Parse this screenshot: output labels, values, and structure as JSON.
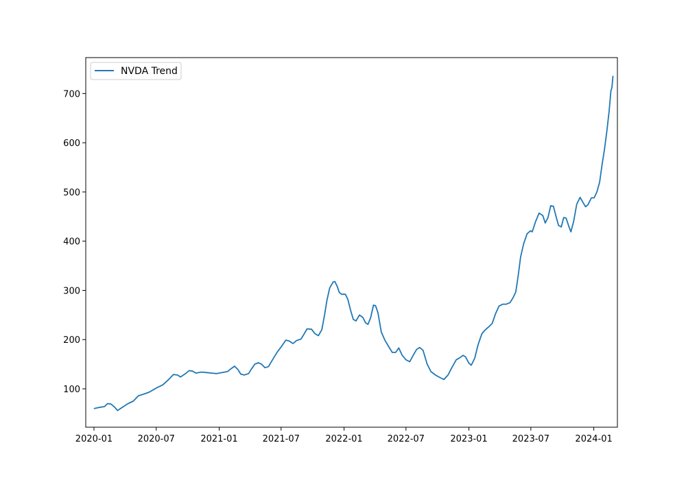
{
  "chart_data": {
    "type": "line",
    "title": "",
    "xlabel": "",
    "ylabel": "",
    "xlim": [
      "2019-12-08",
      "2024-03-10"
    ],
    "ylim": [
      22,
      773
    ],
    "grid": false,
    "legend": {
      "position": "top-left",
      "entries": [
        "NVDA Trend"
      ]
    },
    "x_ticks": [
      {
        "value": "2020-01-01",
        "label": "2020-01"
      },
      {
        "value": "2020-07-01",
        "label": "2020-07"
      },
      {
        "value": "2021-01-01",
        "label": "2021-01"
      },
      {
        "value": "2021-07-01",
        "label": "2021-07"
      },
      {
        "value": "2022-01-01",
        "label": "2022-01"
      },
      {
        "value": "2022-07-01",
        "label": "2022-07"
      },
      {
        "value": "2023-01-01",
        "label": "2023-01"
      },
      {
        "value": "2023-07-01",
        "label": "2023-07"
      },
      {
        "value": "2024-01-01",
        "label": "2024-01"
      }
    ],
    "y_ticks": [
      {
        "value": 100,
        "label": "100"
      },
      {
        "value": 200,
        "label": "200"
      },
      {
        "value": 300,
        "label": "300"
      },
      {
        "value": 400,
        "label": "400"
      },
      {
        "value": 500,
        "label": "500"
      },
      {
        "value": 600,
        "label": "600"
      },
      {
        "value": 700,
        "label": "700"
      }
    ],
    "series": [
      {
        "name": "NVDA Trend",
        "color": "#1f77b4",
        "points": [
          [
            "2020-01-02",
            60
          ],
          [
            "2020-01-15",
            62
          ],
          [
            "2020-02-01",
            64
          ],
          [
            "2020-02-10",
            70
          ],
          [
            "2020-02-20",
            69
          ],
          [
            "2020-03-01",
            63
          ],
          [
            "2020-03-10",
            56
          ],
          [
            "2020-03-25",
            63
          ],
          [
            "2020-04-10",
            70
          ],
          [
            "2020-04-25",
            75
          ],
          [
            "2020-05-10",
            86
          ],
          [
            "2020-05-25",
            89
          ],
          [
            "2020-06-10",
            93
          ],
          [
            "2020-06-25",
            99
          ],
          [
            "2020-07-05",
            103
          ],
          [
            "2020-07-20",
            108
          ],
          [
            "2020-08-05",
            118
          ],
          [
            "2020-08-20",
            129
          ],
          [
            "2020-09-01",
            128
          ],
          [
            "2020-09-10",
            124
          ],
          [
            "2020-09-25",
            131
          ],
          [
            "2020-10-05",
            137
          ],
          [
            "2020-10-15",
            136
          ],
          [
            "2020-10-25",
            132
          ],
          [
            "2020-11-10",
            134
          ],
          [
            "2020-11-25",
            133
          ],
          [
            "2020-12-10",
            132
          ],
          [
            "2020-12-25",
            131
          ],
          [
            "2021-01-10",
            133
          ],
          [
            "2021-01-25",
            135
          ],
          [
            "2021-02-05",
            141
          ],
          [
            "2021-02-15",
            146
          ],
          [
            "2021-02-25",
            139
          ],
          [
            "2021-03-05",
            130
          ],
          [
            "2021-03-15",
            128
          ],
          [
            "2021-03-28",
            131
          ],
          [
            "2021-04-05",
            140
          ],
          [
            "2021-04-15",
            150
          ],
          [
            "2021-04-25",
            153
          ],
          [
            "2021-05-05",
            150
          ],
          [
            "2021-05-15",
            143
          ],
          [
            "2021-05-25",
            145
          ],
          [
            "2021-06-05",
            158
          ],
          [
            "2021-06-20",
            175
          ],
          [
            "2021-07-01",
            185
          ],
          [
            "2021-07-15",
            199
          ],
          [
            "2021-07-25",
            197
          ],
          [
            "2021-08-05",
            192
          ],
          [
            "2021-08-15",
            198
          ],
          [
            "2021-08-28",
            201
          ],
          [
            "2021-09-05",
            210
          ],
          [
            "2021-09-15",
            222
          ],
          [
            "2021-09-28",
            221
          ],
          [
            "2021-10-08",
            212
          ],
          [
            "2021-10-18",
            208
          ],
          [
            "2021-10-28",
            220
          ],
          [
            "2021-11-05",
            250
          ],
          [
            "2021-11-12",
            280
          ],
          [
            "2021-11-20",
            305
          ],
          [
            "2021-11-30",
            317
          ],
          [
            "2021-12-05",
            318
          ],
          [
            "2021-12-12",
            308
          ],
          [
            "2021-12-18",
            296
          ],
          [
            "2021-12-25",
            292
          ],
          [
            "2022-01-05",
            292
          ],
          [
            "2022-01-12",
            282
          ],
          [
            "2022-01-20",
            260
          ],
          [
            "2022-01-28",
            241
          ],
          [
            "2022-02-05",
            238
          ],
          [
            "2022-02-15",
            250
          ],
          [
            "2022-02-25",
            245
          ],
          [
            "2022-03-05",
            234
          ],
          [
            "2022-03-12",
            231
          ],
          [
            "2022-03-20",
            245
          ],
          [
            "2022-03-28",
            270
          ],
          [
            "2022-04-03",
            269
          ],
          [
            "2022-04-10",
            255
          ],
          [
            "2022-04-20",
            215
          ],
          [
            "2022-05-01",
            198
          ],
          [
            "2022-05-12",
            185
          ],
          [
            "2022-05-22",
            174
          ],
          [
            "2022-06-01",
            174
          ],
          [
            "2022-06-10",
            183
          ],
          [
            "2022-06-20",
            168
          ],
          [
            "2022-07-01",
            159
          ],
          [
            "2022-07-12",
            155
          ],
          [
            "2022-07-22",
            168
          ],
          [
            "2022-08-01",
            180
          ],
          [
            "2022-08-10",
            184
          ],
          [
            "2022-08-20",
            178
          ],
          [
            "2022-09-01",
            150
          ],
          [
            "2022-09-12",
            135
          ],
          [
            "2022-09-25",
            128
          ],
          [
            "2022-10-08",
            123
          ],
          [
            "2022-10-20",
            119
          ],
          [
            "2022-11-01",
            128
          ],
          [
            "2022-11-12",
            143
          ],
          [
            "2022-11-25",
            159
          ],
          [
            "2022-12-05",
            163
          ],
          [
            "2022-12-15",
            168
          ],
          [
            "2022-12-22",
            165
          ],
          [
            "2023-01-01",
            152
          ],
          [
            "2023-01-08",
            148
          ],
          [
            "2023-01-18",
            162
          ],
          [
            "2023-01-28",
            190
          ],
          [
            "2023-02-08",
            212
          ],
          [
            "2023-02-18",
            220
          ],
          [
            "2023-02-28",
            226
          ],
          [
            "2023-03-10",
            233
          ],
          [
            "2023-03-20",
            253
          ],
          [
            "2023-03-30",
            268
          ],
          [
            "2023-04-10",
            272
          ],
          [
            "2023-04-20",
            272
          ],
          [
            "2023-05-01",
            275
          ],
          [
            "2023-05-10",
            285
          ],
          [
            "2023-05-18",
            297
          ],
          [
            "2023-05-25",
            330
          ],
          [
            "2023-06-01",
            368
          ],
          [
            "2023-06-10",
            395
          ],
          [
            "2023-06-20",
            415
          ],
          [
            "2023-06-30",
            421
          ],
          [
            "2023-07-05",
            419
          ],
          [
            "2023-07-15",
            440
          ],
          [
            "2023-07-25",
            457
          ],
          [
            "2023-08-05",
            452
          ],
          [
            "2023-08-12",
            437
          ],
          [
            "2023-08-20",
            448
          ],
          [
            "2023-08-28",
            472
          ],
          [
            "2023-09-05",
            471
          ],
          [
            "2023-09-12",
            452
          ],
          [
            "2023-09-20",
            432
          ],
          [
            "2023-09-28",
            429
          ],
          [
            "2023-10-05",
            448
          ],
          [
            "2023-10-12",
            447
          ],
          [
            "2023-10-20",
            430
          ],
          [
            "2023-10-26",
            419
          ],
          [
            "2023-11-03",
            440
          ],
          [
            "2023-11-12",
            475
          ],
          [
            "2023-11-22",
            489
          ],
          [
            "2023-12-01",
            478
          ],
          [
            "2023-12-08",
            470
          ],
          [
            "2023-12-15",
            474
          ],
          [
            "2023-12-25",
            488
          ],
          [
            "2024-01-02",
            488
          ],
          [
            "2024-01-10",
            500
          ],
          [
            "2024-01-18",
            520
          ],
          [
            "2024-01-25",
            555
          ],
          [
            "2024-02-01",
            585
          ],
          [
            "2024-02-08",
            622
          ],
          [
            "2024-02-15",
            665
          ],
          [
            "2024-02-20",
            705
          ],
          [
            "2024-02-23",
            712
          ],
          [
            "2024-02-26",
            735
          ]
        ]
      }
    ]
  }
}
